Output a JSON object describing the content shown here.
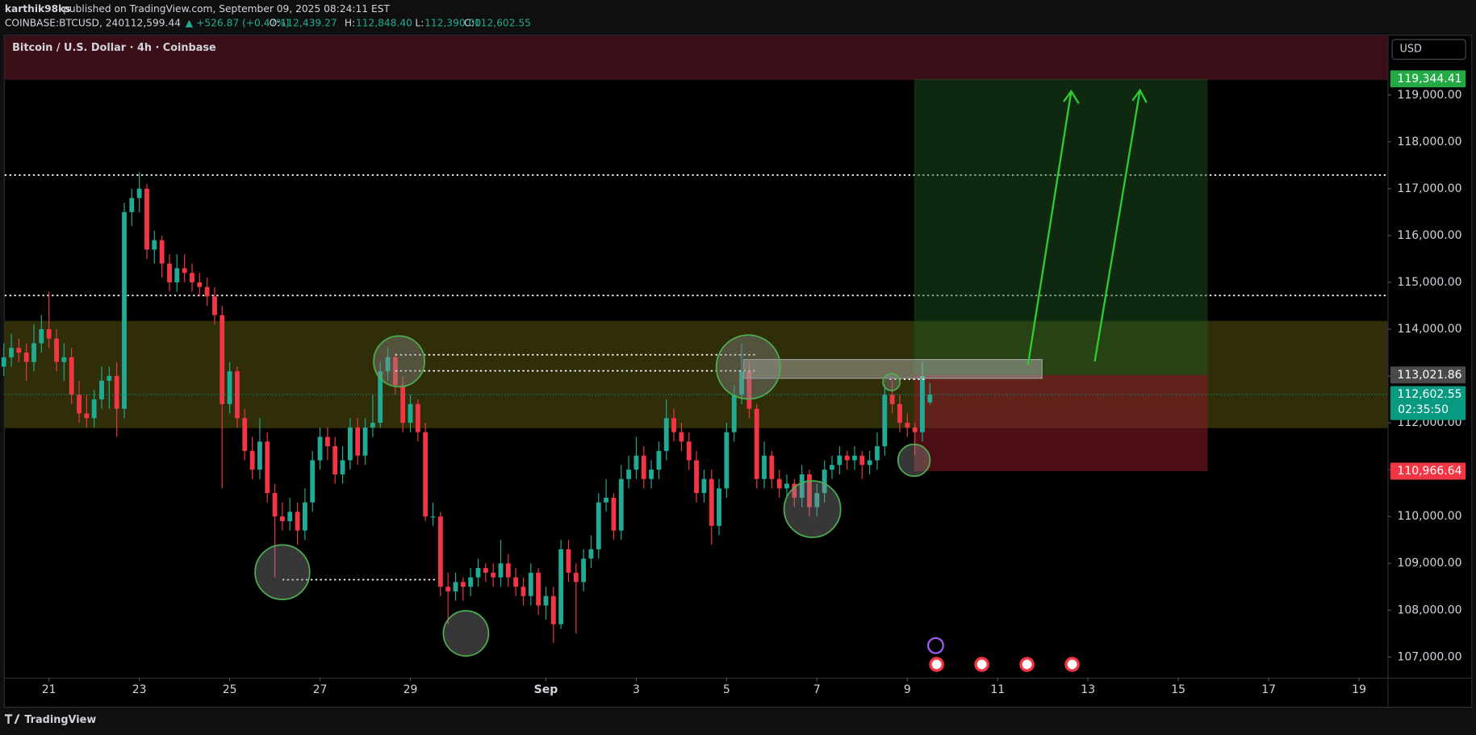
{
  "header": {
    "publisher": "karthik98ks",
    "published": "published on TradingView.com, September 09, 2025 08:24:11 EST",
    "symbol": "COINBASE:BTCUSD, 240",
    "last": "112,599.44",
    "change": "▲ +526.87 (+0.47%)",
    "ohlc": [
      {
        "key": "O:",
        "value": "112,439.27"
      },
      {
        "key": "H:",
        "value": "112,848.40"
      },
      {
        "key": "L:",
        "value": "112,390.00"
      },
      {
        "key": "C:",
        "value": "112,602.55"
      }
    ]
  },
  "chart_data": {
    "type": "candlestick",
    "title": "Bitcoin / U.S. Dollar · 4h · Coinbase",
    "currency": "USD",
    "up_color": "#22ab94",
    "down_color": "#f23645",
    "x": [
      20,
      20.167,
      20.333,
      20.5,
      20.667,
      20.833,
      21,
      21.167,
      21.333,
      21.5,
      21.667,
      21.833,
      22,
      22.167,
      22.333,
      22.5,
      22.667,
      22.833,
      23,
      23.167,
      23.333,
      23.5,
      23.667,
      23.833,
      24,
      24.167,
      24.333,
      24.5,
      24.667,
      24.833,
      25,
      25.167,
      25.333,
      25.5,
      25.667,
      25.833,
      26,
      26.167,
      26.333,
      26.5,
      26.667,
      26.833,
      27,
      27.167,
      27.333,
      27.5,
      27.667,
      27.833,
      28,
      28.167,
      28.333,
      28.5,
      28.667,
      28.833,
      29,
      29.167,
      29.333,
      29.5,
      29.667,
      29.833,
      30,
      30.167,
      30.333,
      30.5,
      30.667,
      30.833,
      31,
      31.167,
      31.333,
      31.5,
      31.667,
      31.833,
      32,
      32.167,
      32.333,
      32.5,
      32.667,
      32.833,
      33,
      33.167,
      33.333,
      33.5,
      33.667,
      33.833,
      34,
      34.167,
      34.333,
      34.5,
      34.667,
      34.833,
      35,
      35.167,
      35.333,
      35.5,
      35.667,
      35.833,
      36,
      36.167,
      36.333,
      36.5,
      36.667,
      36.833,
      37,
      37.167,
      37.333,
      37.5,
      37.667,
      37.833,
      38,
      38.167,
      38.333,
      38.5,
      38.667,
      38.833,
      39,
      39.167,
      39.333,
      39.5,
      39.667,
      39.833,
      40,
      40.167,
      40.333,
      40.5
    ],
    "ohlc": [
      [
        113200,
        113700,
        113000,
        113400
      ],
      [
        113400,
        113900,
        113200,
        113600
      ],
      [
        113600,
        113800,
        113300,
        113500
      ],
      [
        113500,
        113700,
        112900,
        113300
      ],
      [
        113300,
        114100,
        113100,
        113700
      ],
      [
        113700,
        114300,
        113500,
        114000
      ],
      [
        114000,
        114800,
        113600,
        113800
      ],
      [
        113800,
        114000,
        113100,
        113300
      ],
      [
        113300,
        113700,
        112900,
        113400
      ],
      [
        113400,
        113600,
        112400,
        112600
      ],
      [
        112600,
        112900,
        112000,
        112200
      ],
      [
        112200,
        112600,
        111900,
        112100
      ],
      [
        112100,
        112700,
        111900,
        112500
      ],
      [
        112500,
        113200,
        112300,
        112900
      ],
      [
        112900,
        113200,
        112300,
        113000
      ],
      [
        113000,
        113300,
        111700,
        112300
      ],
      [
        112300,
        116700,
        112100,
        116500
      ],
      [
        116500,
        117000,
        116200,
        116800
      ],
      [
        116800,
        117350,
        116500,
        117000
      ],
      [
        117000,
        117100,
        115500,
        115700
      ],
      [
        115700,
        116100,
        115400,
        115900
      ],
      [
        115900,
        116000,
        115100,
        115400
      ],
      [
        115400,
        115600,
        114800,
        115000
      ],
      [
        115000,
        115600,
        114800,
        115300
      ],
      [
        115300,
        115600,
        115000,
        115200
      ],
      [
        115200,
        115400,
        114800,
        115000
      ],
      [
        115000,
        115200,
        114700,
        114900
      ],
      [
        114900,
        115100,
        114500,
        114700
      ],
      [
        114700,
        114900,
        114100,
        114300
      ],
      [
        114300,
        114500,
        110600,
        112400
      ],
      [
        112400,
        113300,
        112200,
        113100
      ],
      [
        113100,
        113200,
        111900,
        112100
      ],
      [
        112100,
        112300,
        111200,
        111400
      ],
      [
        111400,
        111700,
        110800,
        111000
      ],
      [
        111000,
        112100,
        110800,
        111600
      ],
      [
        111600,
        111800,
        110300,
        110500
      ],
      [
        110500,
        110700,
        108700,
        110000
      ],
      [
        110000,
        110300,
        109700,
        109900
      ],
      [
        109900,
        110400,
        109700,
        110100
      ],
      [
        110100,
        110300,
        109400,
        109700
      ],
      [
        109700,
        110600,
        109500,
        110300
      ],
      [
        110300,
        111400,
        110100,
        111200
      ],
      [
        111200,
        111900,
        111000,
        111700
      ],
      [
        111700,
        111900,
        111200,
        111500
      ],
      [
        111500,
        111700,
        110700,
        110900
      ],
      [
        110900,
        111500,
        110700,
        111200
      ],
      [
        111200,
        112100,
        111000,
        111900
      ],
      [
        111900,
        112100,
        111100,
        111300
      ],
      [
        111300,
        112100,
        111100,
        111900
      ],
      [
        111900,
        112600,
        111700,
        112000
      ],
      [
        112000,
        113300,
        111900,
        113100
      ],
      [
        113100,
        113600,
        112900,
        113400
      ],
      [
        113400,
        113500,
        112600,
        112800
      ],
      [
        112800,
        113000,
        111800,
        112000
      ],
      [
        112000,
        112600,
        111800,
        112400
      ],
      [
        112400,
        112500,
        111600,
        111800
      ],
      [
        111800,
        112000,
        109900,
        110000
      ],
      [
        110000,
        110300,
        109800,
        110000
      ],
      [
        110000,
        110100,
        108300,
        108500
      ],
      [
        108500,
        108800,
        107700,
        108400
      ],
      [
        108400,
        108800,
        108200,
        108600
      ],
      [
        108600,
        108700,
        108200,
        108500
      ],
      [
        108500,
        108900,
        108300,
        108700
      ],
      [
        108700,
        109100,
        108500,
        108900
      ],
      [
        108900,
        109000,
        108600,
        108800
      ],
      [
        108800,
        109000,
        108500,
        108700
      ],
      [
        108700,
        109500,
        108500,
        109000
      ],
      [
        109000,
        109200,
        108500,
        108700
      ],
      [
        108700,
        108900,
        108300,
        108500
      ],
      [
        108500,
        108700,
        108100,
        108300
      ],
      [
        108300,
        109000,
        108100,
        108800
      ],
      [
        108800,
        108900,
        107900,
        108100
      ],
      [
        108100,
        108500,
        107800,
        108300
      ],
      [
        108300,
        108500,
        107300,
        107700
      ],
      [
        107700,
        109500,
        107600,
        109300
      ],
      [
        109300,
        109500,
        108600,
        108800
      ],
      [
        108800,
        109000,
        107500,
        108600
      ],
      [
        108600,
        109300,
        108400,
        109100
      ],
      [
        109100,
        109600,
        108900,
        109300
      ],
      [
        109300,
        110500,
        109100,
        110300
      ],
      [
        110300,
        110800,
        110100,
        110400
      ],
      [
        110400,
        110500,
        109500,
        109700
      ],
      [
        109700,
        111100,
        109500,
        110800
      ],
      [
        110800,
        111300,
        110600,
        111000
      ],
      [
        111000,
        111700,
        110800,
        111300
      ],
      [
        111300,
        111500,
        110600,
        110800
      ],
      [
        110800,
        111200,
        110600,
        111000
      ],
      [
        111000,
        111600,
        110800,
        111400
      ],
      [
        111400,
        112500,
        111200,
        112100
      ],
      [
        112100,
        112300,
        111600,
        111800
      ],
      [
        111800,
        112000,
        111400,
        111600
      ],
      [
        111600,
        111800,
        111000,
        111200
      ],
      [
        111200,
        111400,
        110300,
        110500
      ],
      [
        110500,
        111000,
        110300,
        110800
      ],
      [
        110800,
        111000,
        109400,
        109800
      ],
      [
        109800,
        110800,
        109600,
        110600
      ],
      [
        110600,
        112000,
        110400,
        111800
      ],
      [
        111800,
        112800,
        111600,
        112600
      ],
      [
        112600,
        113700,
        112400,
        113100
      ],
      [
        113100,
        113300,
        112100,
        112300
      ],
      [
        112300,
        112400,
        110600,
        110800
      ],
      [
        110800,
        111600,
        110600,
        111300
      ],
      [
        111300,
        111400,
        110600,
        110800
      ],
      [
        110800,
        111000,
        110400,
        110600
      ],
      [
        110600,
        110900,
        110400,
        110700
      ],
      [
        110700,
        110800,
        110200,
        110400
      ],
      [
        110400,
        111100,
        110200,
        110900
      ],
      [
        110900,
        111000,
        110000,
        110200
      ],
      [
        110200,
        110700,
        110000,
        110500
      ],
      [
        110500,
        111200,
        110300,
        111000
      ],
      [
        111000,
        111300,
        110800,
        111100
      ],
      [
        111100,
        111500,
        110900,
        111300
      ],
      [
        111300,
        111400,
        111000,
        111200
      ],
      [
        111200,
        111500,
        111000,
        111300
      ],
      [
        111300,
        111400,
        110800,
        111100
      ],
      [
        111100,
        111400,
        110900,
        111200
      ],
      [
        111200,
        111800,
        111000,
        111500
      ],
      [
        111500,
        112800,
        111300,
        112600
      ],
      [
        112600,
        112900,
        112200,
        112400
      ],
      [
        112400,
        112600,
        111800,
        112000
      ],
      [
        112000,
        112200,
        111700,
        111900
      ],
      [
        111900,
        112000,
        111300,
        111800
      ],
      [
        111800,
        113300,
        111600,
        113000
      ],
      [
        112439.27,
        112848.4,
        112390,
        112602.55
      ]
    ],
    "xlim": [
      20.02,
      50.63
    ],
    "xticks": [
      21,
      23,
      25,
      27,
      29,
      {
        "value": 32,
        "label": "Sep"
      },
      {
        "value": 34,
        "label": "3"
      },
      {
        "value": 36,
        "label": "5"
      },
      {
        "value": 38,
        "label": "7"
      },
      {
        "value": 40,
        "label": "9"
      },
      {
        "value": 42,
        "label": "11"
      },
      {
        "value": 44,
        "label": "13"
      },
      {
        "value": 46,
        "label": "15"
      },
      {
        "value": 48,
        "label": "17"
      },
      {
        "value": 50,
        "label": "19"
      }
    ],
    "ylim": [
      106560,
      120265
    ],
    "yticks": [
      {
        "value": 107000,
        "label": "107,000.00"
      },
      {
        "value": 108000,
        "label": "108,000.00"
      },
      {
        "value": 109000,
        "label": "109,000.00"
      },
      {
        "value": 110000,
        "label": "110,000.00"
      },
      {
        "value": 111000,
        "label": "111,000.00"
      },
      {
        "value": 112000,
        "label": "112,000.00"
      },
      {
        "value": 113000,
        "label": "113,000.00"
      },
      {
        "value": 114000,
        "label": "114,000.00"
      },
      {
        "value": 115000,
        "label": "115,000.00"
      },
      {
        "value": 116000,
        "label": "116,000.00"
      },
      {
        "value": 117000,
        "label": "117,000.00"
      },
      {
        "value": 118000,
        "label": "118,000.00"
      },
      {
        "value": 119000,
        "label": "119,000.00"
      }
    ],
    "price_labels": [
      {
        "value": 119344.41,
        "label": "119,344.41",
        "color": "#22ab45"
      },
      {
        "value": 113021.86,
        "label": "113,021.86",
        "color": "#4a4a4a"
      },
      {
        "value": 112602.55,
        "label": "112,602.55",
        "color": "#089981"
      },
      {
        "value": 110966.64,
        "label": "110,966.64",
        "color": "#f23645"
      }
    ],
    "countdown": "02:35:50"
  },
  "footer": {
    "logo": "TradingView"
  }
}
